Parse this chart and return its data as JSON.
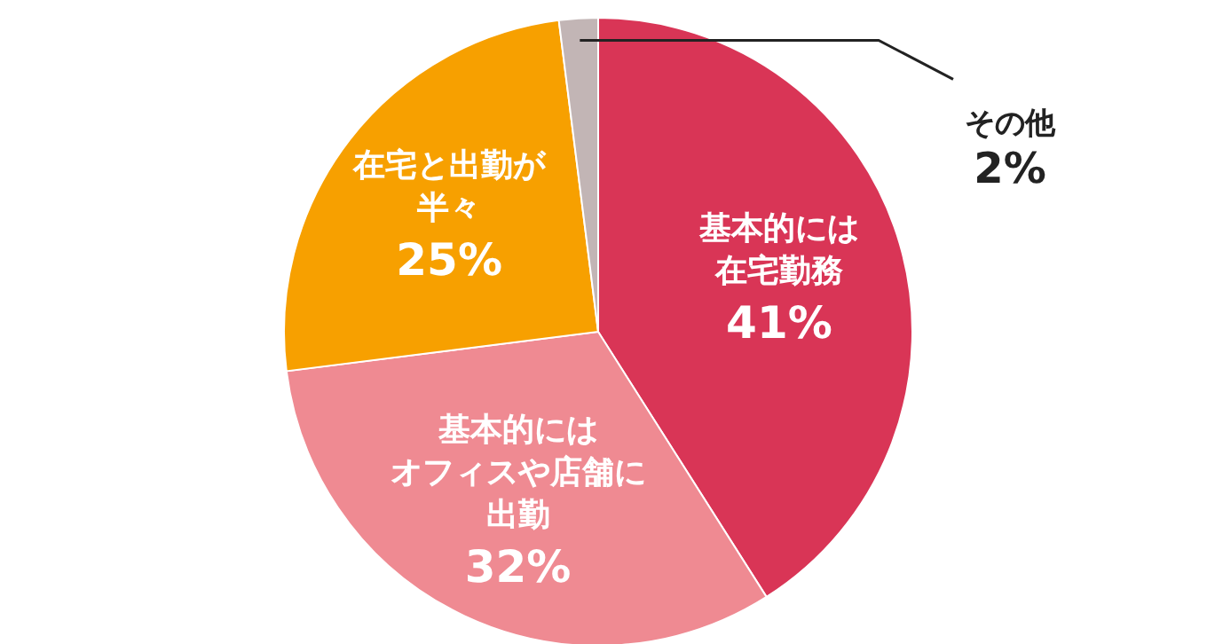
{
  "chart_data": {
    "type": "pie",
    "categories": [
      "基本的には在宅勤務",
      "基本的にはオフィスや店舗に出勤",
      "在宅と出勤が半々",
      "その他"
    ],
    "values": [
      41,
      32,
      25,
      2
    ],
    "value_labels": [
      "41%",
      "32%",
      "25%",
      "2%"
    ],
    "colors": [
      "#d93556",
      "#ef8a92",
      "#f7a000",
      "#c2b5b5"
    ],
    "legend": false
  }
}
